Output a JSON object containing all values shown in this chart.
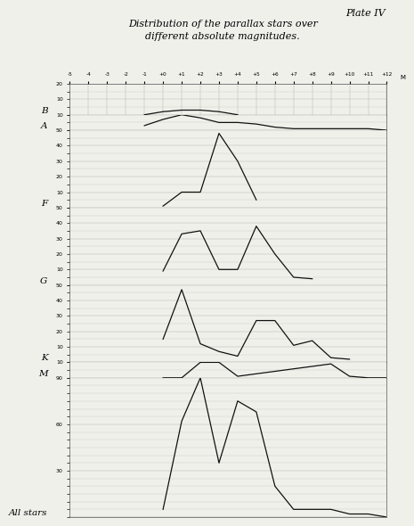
{
  "title_line1": "Distribution of the parallax stars over",
  "title_line2": "different absolute magnitudes.",
  "plate_label": "Plate IV",
  "background_color": "#f0f0eb",
  "grid_color": "#b8b8b0",
  "line_color": "#111111",
  "xmin": -5,
  "xmax": 12,
  "x_tick_labels": [
    "-5",
    "-4",
    "-3",
    "-2",
    "-1",
    "+0",
    "+1",
    "+2",
    "+3",
    "+4",
    "+5",
    "+6",
    "+7",
    "+8",
    "+9",
    "+10",
    "+11",
    "+12"
  ],
  "panels": [
    {
      "label": "B",
      "ymax": 20,
      "yticks": [
        10,
        20
      ],
      "data_x": [
        -1,
        0,
        1,
        2,
        3,
        4
      ],
      "data_y": [
        0,
        2,
        3,
        3,
        2,
        0
      ]
    },
    {
      "label": "A",
      "ymax": 10,
      "yticks": [
        10
      ],
      "data_x": [
        -1,
        0,
        1,
        2,
        3,
        4,
        5,
        6,
        7,
        8,
        9,
        10,
        11,
        12
      ],
      "data_y": [
        3,
        7,
        10,
        8,
        5,
        5,
        4,
        2,
        1,
        1,
        1,
        1,
        1,
        0
      ]
    },
    {
      "label": "F",
      "ymax": 50,
      "yticks": [
        10,
        20,
        30,
        40,
        50
      ],
      "data_x": [
        0,
        1,
        2,
        3,
        4,
        5
      ],
      "data_y": [
        1,
        10,
        10,
        48,
        30,
        5
      ]
    },
    {
      "label": "G",
      "ymax": 50,
      "yticks": [
        10,
        20,
        30,
        40,
        50
      ],
      "data_x": [
        0,
        1,
        2,
        3,
        4,
        5,
        6,
        7,
        8
      ],
      "data_y": [
        9,
        33,
        35,
        10,
        10,
        38,
        20,
        5,
        4
      ]
    },
    {
      "label": "K",
      "ymax": 50,
      "yticks": [
        10,
        20,
        30,
        40,
        50
      ],
      "data_x": [
        0,
        1,
        2,
        3,
        4,
        5,
        6,
        7,
        8,
        9,
        10
      ],
      "data_y": [
        15,
        47,
        12,
        7,
        4,
        27,
        27,
        11,
        14,
        3,
        2
      ]
    },
    {
      "label": "M",
      "ymax": 10,
      "yticks": [
        10
      ],
      "data_x": [
        0,
        1,
        2,
        3,
        4,
        9,
        10,
        11,
        12
      ],
      "data_y": [
        0,
        0,
        10,
        10,
        1,
        9,
        1,
        0,
        0
      ]
    },
    {
      "label": "All stars",
      "ymax": 90,
      "yticks": [
        30,
        60,
        90
      ],
      "data_x": [
        0,
        1,
        2,
        3,
        4,
        5,
        6,
        7,
        8,
        9,
        10,
        11,
        12
      ],
      "data_y": [
        5,
        62,
        90,
        35,
        75,
        68,
        20,
        5,
        5,
        5,
        2,
        2,
        0
      ]
    }
  ]
}
